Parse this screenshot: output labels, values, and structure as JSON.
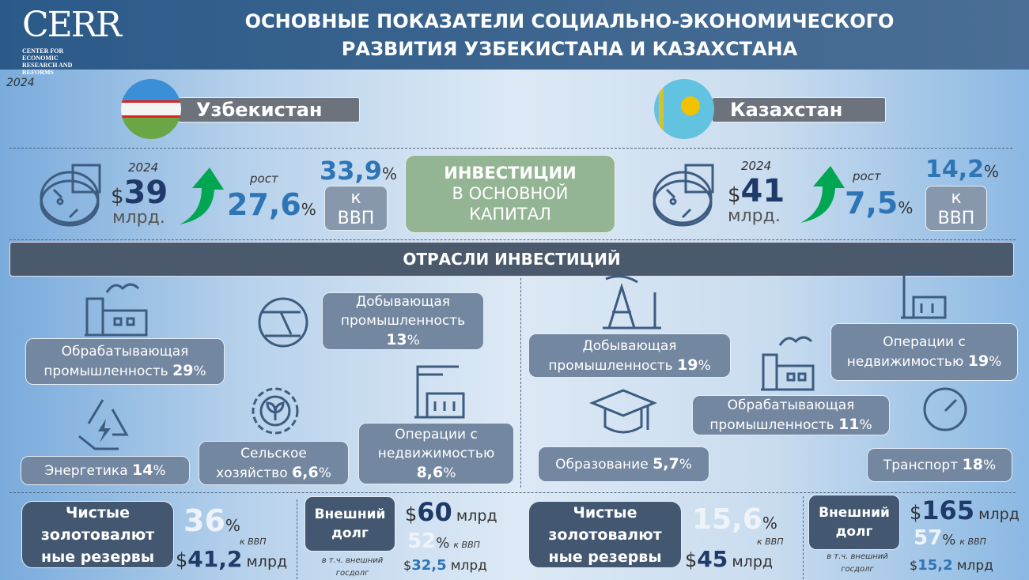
{
  "header": {
    "logo": "CERR",
    "logo_sub": "CENTER FOR ECONOMIC RESEARCH AND REFORMS",
    "title_line1": "ОСНОВНЫЕ ПОКАЗАТЕЛИ СОЦИАЛЬНО-ЭКОНОМИЧЕСКОГО",
    "title_line2": "РАЗВИТИЯ УЗБЕКИСТАНА И КАЗАХСТАНА"
  },
  "year": "2024",
  "colors": {
    "header": "#2b5a89",
    "number_dark": "#1f3a68",
    "number_blue": "#2e75b6",
    "invest_box": "#94b594",
    "sector_box": "#7387a0",
    "arrow": "#00a651"
  },
  "investments": {
    "title_bold": "ИНВЕСТИЦИИ",
    "title_rest1": "В ОСНОВНОЙ",
    "title_rest2": "КАПИТАЛ"
  },
  "uz": {
    "name": "Узбекистан",
    "year": "2024",
    "currency": "$",
    "amount": "39",
    "unit": "млрд.",
    "growth_label": "рост",
    "growth": "27,6",
    "pct": "%",
    "gdp_share": "33,9",
    "gdp_label1": "к",
    "gdp_label2": "ВВП",
    "sectors": [
      {
        "l1": "Обрабатывающая",
        "l2": "промышленность",
        "v": "29",
        "p": "%"
      },
      {
        "l1": "Добывающая",
        "l2": "промышленность",
        "v": "13",
        "p": "%"
      },
      {
        "l1": "Энергетика",
        "l2": "",
        "v": "14",
        "p": "%"
      },
      {
        "l1": "Сельское",
        "l2": "хозяйство",
        "v": "6,6",
        "p": "%"
      },
      {
        "l1": "Операции с",
        "l2": "недвижимостью",
        "v": "8,6",
        "p": "%"
      }
    ],
    "reserves": {
      "label": "Чистые золотовалют ные резервы",
      "pct": "36",
      "pct_sign": "%",
      "gdp": "к ВВП",
      "cur": "$",
      "amount": "41,2",
      "unit": "млрд"
    },
    "debt": {
      "label": "Внешний долг",
      "cur": "$",
      "amount": "60",
      "unit": "млрд",
      "pct": "52",
      "pct_sign": "%",
      "gdp": "к ВВП",
      "note": "в т.ч. внешний госдолг",
      "gov_cur": "$",
      "gov_amount": "32,5",
      "gov_unit": "млрд"
    }
  },
  "kz": {
    "name": "Казахстан",
    "year": "2024",
    "currency": "$",
    "amount": "41",
    "unit": "млрд.",
    "growth_label": "рост",
    "growth": "7,5",
    "pct": "%",
    "gdp_share": "14,2",
    "gdp_label1": "к",
    "gdp_label2": "ВВП",
    "sectors": [
      {
        "l1": "Добывающая",
        "l2": "промышленность",
        "v": "19",
        "p": "%"
      },
      {
        "l1": "Операции с",
        "l2": "недвижимостью",
        "v": "19",
        "p": "%"
      },
      {
        "l1": "Обрабатывающая",
        "l2": "промышленность",
        "v": "11",
        "p": "%"
      },
      {
        "l1": "Образование",
        "l2": "",
        "v": "5,7",
        "p": "%"
      },
      {
        "l1": "Транспорт",
        "l2": "",
        "v": "18",
        "p": "%"
      }
    ],
    "reserves": {
      "label": "Чистые золотовалют ные резервы",
      "pct": "15,6",
      "pct_sign": "%",
      "gdp": "к ВВП",
      "cur": "$",
      "amount": "45",
      "unit": "млрд"
    },
    "debt": {
      "label": "Внешний долг",
      "cur": "$",
      "amount": "165",
      "unit": "млрд",
      "pct": "57",
      "pct_sign": "%",
      "gdp": "к ВВП",
      "note": "в т.ч. внешний госдолг",
      "gov_cur": "$",
      "gov_amount": "15,2",
      "gov_unit": "млрд"
    }
  },
  "sectors_title": "ОТРАСЛИ ИНВЕСТИЦИЙ"
}
